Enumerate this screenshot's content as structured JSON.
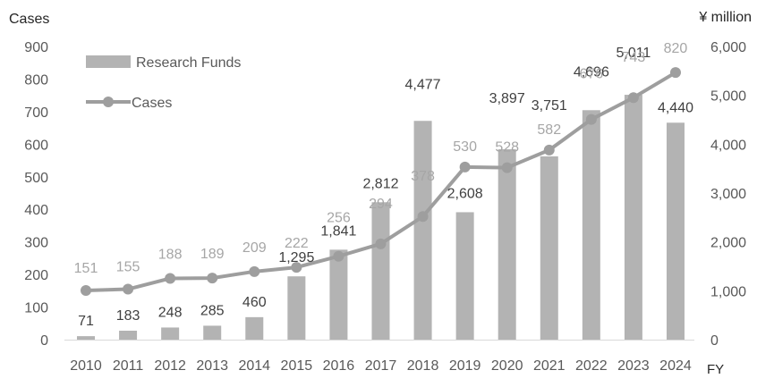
{
  "chart_data": {
    "type": "bar+line",
    "title": "",
    "categories": [
      "2010",
      "2011",
      "2012",
      "2013",
      "2014",
      "2015",
      "2016",
      "2017",
      "2018",
      "2019",
      "2020",
      "2021",
      "2022",
      "2023",
      "2024"
    ],
    "series": [
      {
        "name": "Research Funds",
        "kind": "bar",
        "axis": "right",
        "values": [
          71,
          183,
          248,
          285,
          460,
          1295,
          1841,
          2812,
          4477,
          2608,
          3897,
          3751,
          4696,
          5011,
          4440
        ],
        "labels": [
          "71",
          "183",
          "248",
          "285",
          "460",
          "1,295",
          "1,841",
          "2,812",
          "4,477",
          "2,608",
          "3,897",
          "3,751",
          "4,696",
          "5,011",
          "4,440"
        ],
        "color": "#b3b3b3"
      },
      {
        "name": "Cases",
        "kind": "line",
        "axis": "left",
        "values": [
          151,
          155,
          188,
          189,
          209,
          222,
          256,
          294,
          378,
          530,
          528,
          582,
          676,
          743,
          820
        ],
        "labels": [
          "151",
          "155",
          "188",
          "189",
          "209",
          "222",
          "256",
          "294",
          "378",
          "530",
          "528",
          "582",
          "676",
          "743",
          "820"
        ],
        "color": "#9e9e9e"
      }
    ],
    "y_left": {
      "label": "Cases",
      "ylim": [
        0,
        900
      ],
      "ticks": [
        "0",
        "100",
        "200",
        "300",
        "400",
        "500",
        "600",
        "700",
        "800",
        "900"
      ]
    },
    "y_right": {
      "label": "¥ million",
      "ylim": [
        0,
        6000
      ],
      "ticks": [
        "0",
        "1,000",
        "2,000",
        "3,000",
        "4,000",
        "5,000",
        "6,000"
      ]
    },
    "xlabel": "FY",
    "legend": {
      "position": "top-left",
      "entries": [
        "Research Funds",
        "Cases"
      ]
    },
    "colors": {
      "bar": "#b3b3b3",
      "line": "#9e9e9e",
      "axis_text": "#595959",
      "bar_label": "#404040",
      "line_label": "#a6a6a6"
    }
  }
}
